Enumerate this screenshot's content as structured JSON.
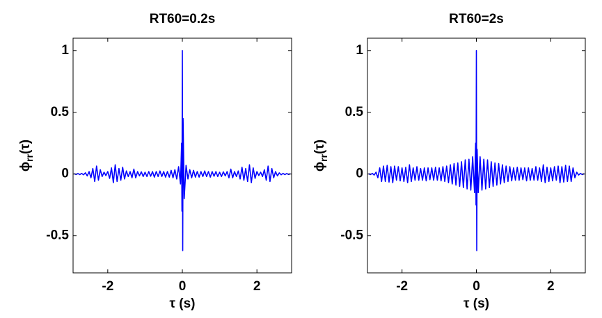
{
  "chart_data": [
    {
      "type": "line",
      "title": "RT60=0.2s",
      "xlabel": "τ (s)",
      "ylabel": [
        "ϕ",
        "rr",
        "(τ)"
      ],
      "xlim": [
        -2.93,
        2.93
      ],
      "ylim": [
        -0.8,
        1.1
      ],
      "xticks": [
        -2,
        0,
        2
      ],
      "yticks": [
        -0.5,
        0,
        0.5,
        1
      ],
      "x": [
        -2.9,
        -2.85,
        -2.8,
        -2.75,
        -2.7,
        -2.65,
        -2.6,
        -2.55,
        -2.5,
        -2.45,
        -2.4,
        -2.35,
        -2.3,
        -2.25,
        -2.2,
        -2.15,
        -2.1,
        -2.05,
        -2,
        -1.95,
        -1.9,
        -1.85,
        -1.8,
        -1.75,
        -1.7,
        -1.65,
        -1.6,
        -1.55,
        -1.5,
        -1.45,
        -1.4,
        -1.35,
        -1.3,
        -1.25,
        -1.2,
        -1.15,
        -1.1,
        -1.05,
        -1,
        -0.95,
        -0.9,
        -0.85,
        -0.8,
        -0.75,
        -0.7,
        -0.65,
        -0.6,
        -0.55,
        -0.5,
        -0.45,
        -0.4,
        -0.35,
        -0.3,
        -0.25,
        -0.2,
        -0.15,
        -0.1,
        -0.05,
        -0.02,
        -0.01,
        0,
        0.01,
        0.02,
        0.05,
        0.1,
        0.15,
        0.2,
        0.25,
        0.3,
        0.35,
        0.4,
        0.45,
        0.5,
        0.55,
        0.6,
        0.65,
        0.7,
        0.75,
        0.8,
        0.85,
        0.9,
        0.95,
        1,
        1.05,
        1.1,
        1.15,
        1.2,
        1.25,
        1.3,
        1.35,
        1.4,
        1.45,
        1.5,
        1.55,
        1.6,
        1.65,
        1.7,
        1.75,
        1.8,
        1.85,
        1.9,
        1.95,
        2,
        2.05,
        2.1,
        2.15,
        2.2,
        2.25,
        2.3,
        2.35,
        2.4,
        2.45,
        2.5,
        2.55,
        2.6,
        2.65,
        2.7,
        2.75,
        2.8,
        2.85,
        2.9
      ],
      "series": [
        {
          "color": "#0000ff",
          "values": [
            0.003,
            -0.003,
            0.004,
            -0.004,
            0.005,
            -0.006,
            0.01,
            -0.015,
            0.02,
            -0.03,
            0.045,
            -0.06,
            0.065,
            -0.05,
            0.035,
            -0.02,
            0.015,
            -0.012,
            0.02,
            -0.035,
            0.05,
            -0.07,
            0.075,
            -0.06,
            0.045,
            -0.05,
            0.055,
            -0.04,
            0.025,
            -0.02,
            0.02,
            -0.03,
            0.04,
            -0.03,
            0.02,
            -0.015,
            0.018,
            -0.02,
            0.015,
            -0.02,
            0.02,
            -0.018,
            0.02,
            -0.025,
            0.02,
            -0.02,
            0.025,
            -0.02,
            0.02,
            -0.025,
            0.02,
            -0.025,
            0.03,
            -0.03,
            0.035,
            -0.04,
            0.06,
            -0.08,
            0.25,
            -0.3,
            1,
            -0.62,
            0.45,
            -0.2,
            0.07,
            -0.04,
            0.035,
            -0.03,
            0.03,
            -0.025,
            0.02,
            -0.025,
            0.02,
            -0.02,
            0.025,
            -0.02,
            0.02,
            -0.025,
            0.02,
            -0.018,
            0.02,
            -0.02,
            0.015,
            -0.02,
            0.018,
            -0.015,
            0.02,
            -0.03,
            0.04,
            -0.03,
            0.02,
            -0.02,
            0.025,
            -0.04,
            0.055,
            -0.05,
            0.045,
            -0.06,
            0.075,
            -0.07,
            0.05,
            -0.035,
            0.02,
            -0.012,
            0.015,
            -0.02,
            0.035,
            -0.05,
            0.065,
            -0.06,
            0.045,
            -0.03,
            0.02,
            -0.015,
            0.01,
            -0.006,
            0.005,
            -0.004,
            0.004,
            -0.003,
            0.003
          ]
        }
      ]
    },
    {
      "type": "line",
      "title": "RT60=2s",
      "xlabel": "τ (s)",
      "ylabel": [
        "ϕ",
        "rr",
        "(τ)"
      ],
      "xlim": [
        -2.93,
        2.93
      ],
      "ylim": [
        -0.8,
        1.1
      ],
      "xticks": [
        -2,
        0,
        2
      ],
      "yticks": [
        -0.5,
        0,
        0.5,
        1
      ],
      "x": [
        -2.9,
        -2.85,
        -2.8,
        -2.75,
        -2.7,
        -2.65,
        -2.6,
        -2.55,
        -2.5,
        -2.45,
        -2.4,
        -2.35,
        -2.3,
        -2.25,
        -2.2,
        -2.15,
        -2.1,
        -2.05,
        -2,
        -1.95,
        -1.9,
        -1.85,
        -1.8,
        -1.75,
        -1.7,
        -1.65,
        -1.6,
        -1.55,
        -1.5,
        -1.45,
        -1.4,
        -1.35,
        -1.3,
        -1.25,
        -1.2,
        -1.15,
        -1.1,
        -1.05,
        -1,
        -0.95,
        -0.9,
        -0.85,
        -0.8,
        -0.75,
        -0.7,
        -0.65,
        -0.6,
        -0.55,
        -0.5,
        -0.45,
        -0.4,
        -0.35,
        -0.3,
        -0.25,
        -0.2,
        -0.15,
        -0.1,
        -0.05,
        -0.02,
        -0.01,
        0,
        0.01,
        0.02,
        0.05,
        0.1,
        0.15,
        0.2,
        0.25,
        0.3,
        0.35,
        0.4,
        0.45,
        0.5,
        0.55,
        0.6,
        0.65,
        0.7,
        0.75,
        0.8,
        0.85,
        0.9,
        0.95,
        1,
        1.05,
        1.1,
        1.15,
        1.2,
        1.25,
        1.3,
        1.35,
        1.4,
        1.45,
        1.5,
        1.55,
        1.6,
        1.65,
        1.7,
        1.75,
        1.8,
        1.85,
        1.9,
        1.95,
        2,
        2.05,
        2.1,
        2.15,
        2.2,
        2.25,
        2.3,
        2.35,
        2.4,
        2.45,
        2.5,
        2.55,
        2.6,
        2.65,
        2.7,
        2.75,
        2.8,
        2.85,
        2.9
      ],
      "series": [
        {
          "color": "#0000ff",
          "values": [
            0.003,
            -0.004,
            0.005,
            -0.008,
            0.015,
            -0.03,
            0.05,
            -0.06,
            0.065,
            -0.06,
            0.07,
            -0.065,
            0.06,
            -0.07,
            0.065,
            -0.05,
            0.06,
            -0.055,
            0.05,
            -0.06,
            0.055,
            -0.07,
            0.075,
            -0.06,
            0.05,
            -0.05,
            0.06,
            -0.05,
            0.045,
            -0.05,
            0.05,
            -0.055,
            0.05,
            -0.045,
            0.05,
            -0.05,
            0.055,
            -0.05,
            0.05,
            -0.055,
            0.06,
            -0.06,
            0.065,
            -0.07,
            0.075,
            -0.08,
            0.085,
            -0.09,
            0.09,
            -0.1,
            0.1,
            -0.11,
            0.115,
            -0.12,
            0.12,
            -0.13,
            0.14,
            -0.15,
            0.25,
            -0.25,
            1,
            -0.62,
            0.2,
            -0.15,
            0.14,
            -0.13,
            0.12,
            -0.12,
            0.115,
            -0.11,
            0.1,
            -0.1,
            0.09,
            -0.09,
            0.085,
            -0.08,
            0.075,
            -0.07,
            0.065,
            -0.06,
            0.06,
            -0.055,
            0.05,
            -0.05,
            0.055,
            -0.05,
            0.05,
            -0.045,
            0.05,
            -0.055,
            0.05,
            -0.05,
            0.045,
            -0.05,
            0.06,
            -0.05,
            0.05,
            -0.06,
            0.075,
            -0.07,
            0.055,
            -0.06,
            0.05,
            -0.055,
            0.06,
            -0.05,
            0.065,
            -0.07,
            0.06,
            -0.065,
            0.07,
            -0.06,
            0.065,
            -0.06,
            0.05,
            -0.03,
            0.015,
            -0.008,
            0.005,
            -0.004,
            0.003
          ]
        }
      ]
    }
  ]
}
